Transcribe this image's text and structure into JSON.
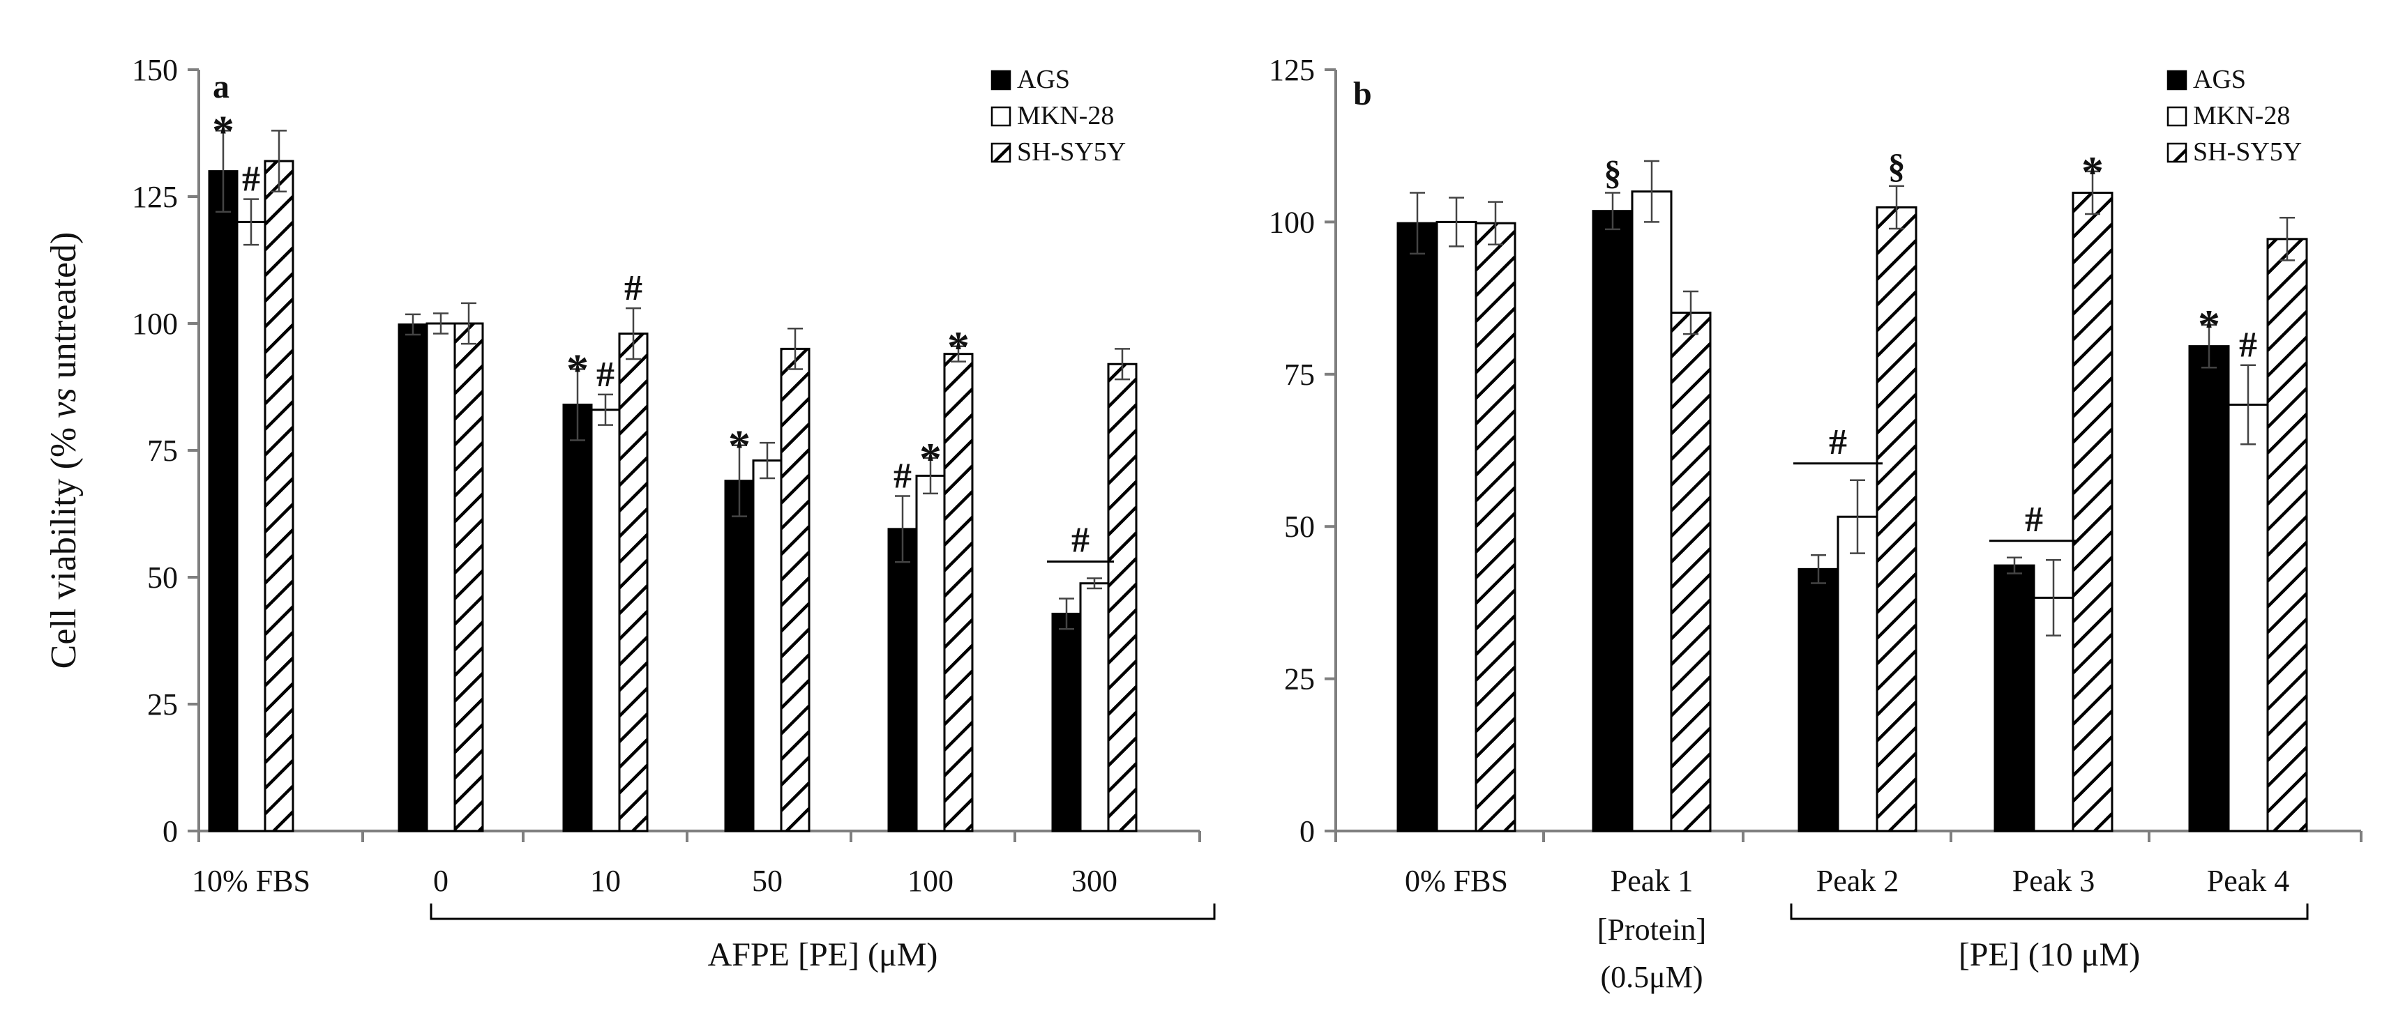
{
  "chart_data": [
    {
      "panel": "a",
      "type": "bar",
      "ylabel_prefix": "Cell viability (% ",
      "ylabel_italic": "vs",
      "ylabel_suffix": " untreated)",
      "ylim": [
        0,
        150
      ],
      "yticks": [
        0,
        25,
        50,
        75,
        100,
        125,
        150
      ],
      "categories": [
        "10% FBS",
        "0",
        "10",
        "50",
        "100",
        "300"
      ],
      "group_label": "AFPE [PE] (μM)",
      "legend": [
        "AGS",
        "MKN-28",
        "SH-SY5Y"
      ],
      "series": [
        {
          "name": "AGS",
          "values": [
            130,
            99.8,
            84,
            69,
            59.5,
            42.8
          ],
          "errors": [
            8,
            2,
            7,
            7,
            6.5,
            3
          ]
        },
        {
          "name": "MKN-28",
          "values": [
            120,
            100,
            83,
            73,
            70,
            48.8
          ],
          "errors": [
            4.5,
            2,
            3,
            3.5,
            3.5,
            1
          ]
        },
        {
          "name": "SH-SY5Y",
          "values": [
            132,
            100,
            98,
            95,
            94,
            92
          ],
          "errors": [
            6,
            4,
            5,
            4,
            1.5,
            3
          ]
        }
      ],
      "annotations": [
        {
          "text": "*",
          "group": 0,
          "bar": 0
        },
        {
          "text": "#",
          "group": 0,
          "bar": 1
        },
        {
          "text": "*",
          "group": 2,
          "bar": 0
        },
        {
          "text": "#",
          "group": 2,
          "bar": 1
        },
        {
          "text": "#",
          "group": 2,
          "bar": 2
        },
        {
          "text": "*",
          "group": 3,
          "bar": 0
        },
        {
          "text": "#",
          "group": 4,
          "bar": 0
        },
        {
          "text": "*",
          "group": 4,
          "bar": 1
        },
        {
          "text": "*",
          "group": 4,
          "bar": 2
        },
        {
          "text": "#",
          "group": 5,
          "span": [
            0,
            1
          ],
          "line": true
        }
      ]
    },
    {
      "panel": "b",
      "type": "bar",
      "ylim": [
        0,
        125
      ],
      "yticks": [
        0,
        25,
        50,
        75,
        100,
        125
      ],
      "categories": [
        "0% FBS",
        "Peak 1",
        "Peak 2",
        "Peak 3",
        "Peak 4"
      ],
      "category_sublabels": [
        "",
        "[Protein]\n(0.5μM)",
        "",
        "",
        ""
      ],
      "group_label": "[PE] (10 μM)",
      "legend": [
        "AGS",
        "MKN-28",
        "SH-SY5Y"
      ],
      "series": [
        {
          "name": "AGS",
          "values": [
            99.8,
            101.8,
            43,
            43.6,
            79.6
          ],
          "errors": [
            5,
            3,
            2.3,
            1.3,
            3.5
          ]
        },
        {
          "name": "MKN-28",
          "values": [
            100,
            105,
            51.6,
            38.3,
            70
          ],
          "errors": [
            4,
            5,
            6,
            6.2,
            6.5
          ]
        },
        {
          "name": "SH-SY5Y",
          "values": [
            99.8,
            85.1,
            102.4,
            104.8,
            97.2
          ],
          "errors": [
            3.5,
            3.5,
            3.5,
            3.5,
            3.5
          ]
        }
      ],
      "annotations": [
        {
          "text": "§",
          "group": 1,
          "bar": 0
        },
        {
          "text": "§",
          "group": 2,
          "bar": 2
        },
        {
          "text": "*",
          "group": 3,
          "bar": 2
        },
        {
          "text": "*",
          "group": 4,
          "bar": 0
        },
        {
          "text": "#",
          "group": 4,
          "bar": 1
        },
        {
          "text": "#",
          "group": 2,
          "span": [
            0,
            1
          ],
          "line": true
        },
        {
          "text": "#",
          "group": 3,
          "span": [
            0,
            1
          ],
          "line": true
        }
      ]
    }
  ],
  "colors": {
    "axis": "#7f7f7f",
    "bar_dark": "#000000",
    "bar_light": "#ffffff",
    "text": "#111111"
  }
}
